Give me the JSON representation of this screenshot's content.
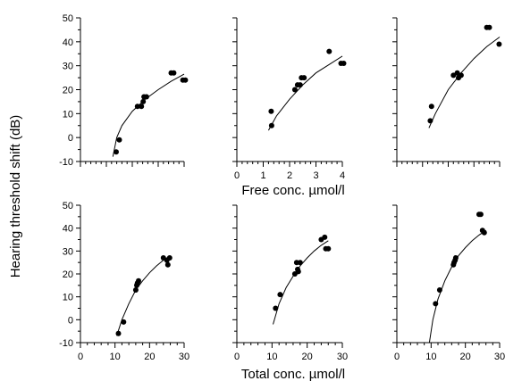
{
  "figure": {
    "ylabel": "Hearing threshold shift (dB)",
    "top_xlabel": "Free conc.  µmol/l",
    "bottom_xlabel": "Total conc.  µmol/l"
  },
  "chart_data": [
    {
      "type": "scatter",
      "panel": "top-left",
      "xlim": [
        0,
        4
      ],
      "ylim": [
        -10,
        50
      ],
      "xticks": [
        "0",
        "1",
        "2",
        "3",
        "4"
      ],
      "yticks": [
        "-10",
        "0",
        "10",
        "20",
        "30",
        "40",
        "50"
      ],
      "points": [
        [
          1.38,
          -6
        ],
        [
          1.5,
          -1
        ],
        [
          2.2,
          13
        ],
        [
          2.35,
          13
        ],
        [
          2.42,
          15
        ],
        [
          2.45,
          17
        ],
        [
          2.55,
          17
        ],
        [
          3.5,
          27
        ],
        [
          3.6,
          27
        ],
        [
          3.95,
          24
        ],
        [
          4.05,
          24
        ]
      ],
      "fit": [
        [
          1.25,
          -8
        ],
        [
          1.4,
          0
        ],
        [
          1.6,
          5
        ],
        [
          2.0,
          11
        ],
        [
          2.5,
          16
        ],
        [
          3.0,
          20
        ],
        [
          3.5,
          23.5
        ],
        [
          4.0,
          26.5
        ]
      ]
    },
    {
      "type": "scatter",
      "panel": "top-middle",
      "xlim": [
        0,
        4
      ],
      "ylim": [
        -10,
        50
      ],
      "xticks": [
        "0",
        "1",
        "2",
        "3",
        "4"
      ],
      "yticks": [
        "-10",
        "0",
        "10",
        "20",
        "30",
        "40",
        "50"
      ],
      "points": [
        [
          1.3,
          11
        ],
        [
          1.32,
          5
        ],
        [
          2.2,
          20
        ],
        [
          2.3,
          22
        ],
        [
          2.4,
          22
        ],
        [
          2.45,
          25
        ],
        [
          2.55,
          25
        ],
        [
          3.5,
          36
        ],
        [
          3.95,
          31
        ],
        [
          4.05,
          31
        ]
      ],
      "fit": [
        [
          1.2,
          3
        ],
        [
          1.5,
          9
        ],
        [
          2.0,
          16
        ],
        [
          2.5,
          22
        ],
        [
          3.0,
          27
        ],
        [
          3.5,
          30.5
        ],
        [
          4.0,
          34
        ]
      ]
    },
    {
      "type": "scatter",
      "panel": "top-right",
      "xlim": [
        0,
        4
      ],
      "ylim": [
        -10,
        50
      ],
      "xticks": [
        "0",
        "1",
        "2",
        "3",
        "4"
      ],
      "yticks": [
        "-10",
        "0",
        "10",
        "20",
        "30",
        "40",
        "50"
      ],
      "points": [
        [
          1.3,
          7
        ],
        [
          1.35,
          13
        ],
        [
          2.2,
          26
        ],
        [
          2.35,
          27
        ],
        [
          2.4,
          25
        ],
        [
          2.5,
          26
        ],
        [
          3.5,
          46
        ],
        [
          3.6,
          46
        ],
        [
          3.98,
          39
        ]
      ],
      "fit": [
        [
          1.25,
          4
        ],
        [
          1.5,
          10
        ],
        [
          2.0,
          20
        ],
        [
          2.5,
          27
        ],
        [
          3.0,
          33
        ],
        [
          3.5,
          38
        ],
        [
          4.0,
          42
        ]
      ]
    },
    {
      "type": "scatter",
      "panel": "bottom-left",
      "xlim": [
        0,
        30
      ],
      "ylim": [
        -10,
        50
      ],
      "xticks": [
        "0",
        "10",
        "20",
        "30"
      ],
      "yticks": [
        "-10",
        "0",
        "10",
        "20",
        "30",
        "40",
        "50"
      ],
      "points": [
        [
          11,
          -6
        ],
        [
          12.5,
          -1
        ],
        [
          16,
          13
        ],
        [
          16.3,
          15
        ],
        [
          16.5,
          16
        ],
        [
          16.8,
          17
        ],
        [
          24,
          27
        ],
        [
          25,
          26
        ],
        [
          25.3,
          24
        ],
        [
          25.8,
          27
        ]
      ],
      "fit": [
        [
          10.5,
          -7
        ],
        [
          12,
          0
        ],
        [
          14,
          7
        ],
        [
          16,
          13
        ],
        [
          18,
          17
        ],
        [
          20,
          20.5
        ],
        [
          22,
          23.5
        ],
        [
          24,
          26
        ],
        [
          26,
          28
        ]
      ]
    },
    {
      "type": "scatter",
      "panel": "bottom-middle",
      "xlim": [
        0,
        30
      ],
      "ylim": [
        -10,
        50
      ],
      "xticks": [
        "0",
        "10",
        "20",
        "30"
      ],
      "yticks": [
        "-10",
        "0",
        "10",
        "20",
        "30",
        "40",
        "50"
      ],
      "points": [
        [
          11,
          5
        ],
        [
          12.3,
          11
        ],
        [
          16.5,
          20
        ],
        [
          17,
          25
        ],
        [
          17.3,
          22
        ],
        [
          17.5,
          21
        ],
        [
          18,
          25
        ],
        [
          24,
          35
        ],
        [
          25,
          36
        ],
        [
          25.3,
          31
        ],
        [
          26,
          31
        ]
      ],
      "fit": [
        [
          10.3,
          -2
        ],
        [
          12,
          7
        ],
        [
          14,
          14
        ],
        [
          16,
          19
        ],
        [
          18,
          23.5
        ],
        [
          20,
          27
        ],
        [
          22,
          30
        ],
        [
          24,
          32.5
        ],
        [
          26,
          34.5
        ]
      ]
    },
    {
      "type": "scatter",
      "panel": "bottom-right",
      "xlim": [
        0,
        30
      ],
      "ylim": [
        -10,
        50
      ],
      "xticks": [
        "0",
        "10",
        "20",
        "30"
      ],
      "yticks": [
        "-10",
        "0",
        "10",
        "20",
        "30",
        "40",
        "50"
      ],
      "points": [
        [
          11.3,
          7
        ],
        [
          12.5,
          13
        ],
        [
          16.5,
          24
        ],
        [
          16.7,
          25
        ],
        [
          17,
          26
        ],
        [
          17.2,
          27
        ],
        [
          24,
          46
        ],
        [
          24.5,
          46
        ],
        [
          25,
          39
        ],
        [
          25.5,
          38
        ]
      ],
      "fit": [
        [
          9.5,
          -10
        ],
        [
          10.5,
          0
        ],
        [
          12,
          9
        ],
        [
          14,
          17
        ],
        [
          16,
          23
        ],
        [
          18,
          28
        ],
        [
          20,
          31.5
        ],
        [
          22,
          34.5
        ],
        [
          24,
          37
        ],
        [
          26,
          39
        ]
      ]
    }
  ]
}
